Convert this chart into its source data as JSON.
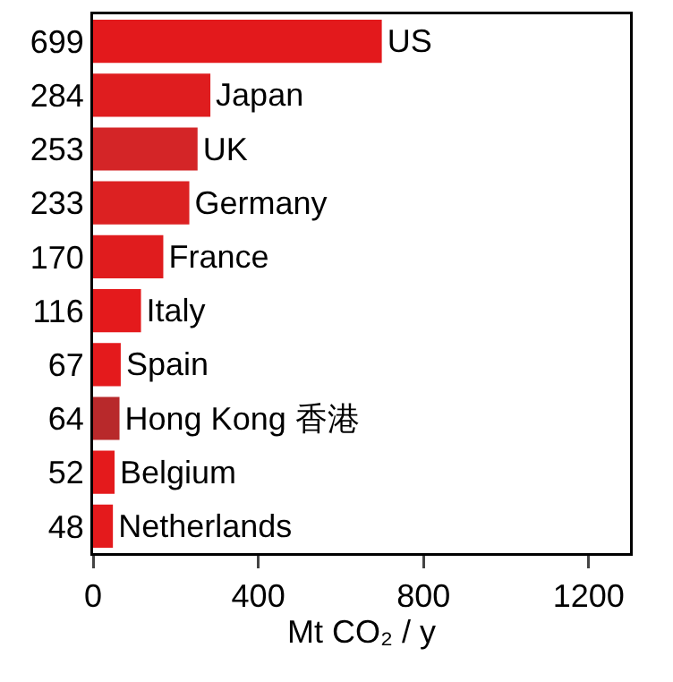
{
  "chart_data": {
    "type": "bar",
    "orientation": "horizontal",
    "xlabel": "Mt CO₂ / y",
    "categories": [
      "US",
      "Japan",
      "UK",
      "Germany",
      "France",
      "Italy",
      "Spain",
      "Hong Kong 香港",
      "Belgium",
      "Netherlands"
    ],
    "values": [
      699,
      284,
      253,
      233,
      170,
      116,
      67,
      64,
      52,
      48
    ],
    "colors": [
      "#e3191c",
      "#df1d1f",
      "#d42527",
      "#dc2122",
      "#e01c1e",
      "#e41a1c",
      "#e41a1c",
      "#b8292b",
      "#e41a1c",
      "#e41a1c"
    ],
    "xlim": [
      0,
      1300
    ],
    "xticks": [
      0,
      400,
      800,
      1200
    ],
    "data_labels": true,
    "grid": false
  }
}
